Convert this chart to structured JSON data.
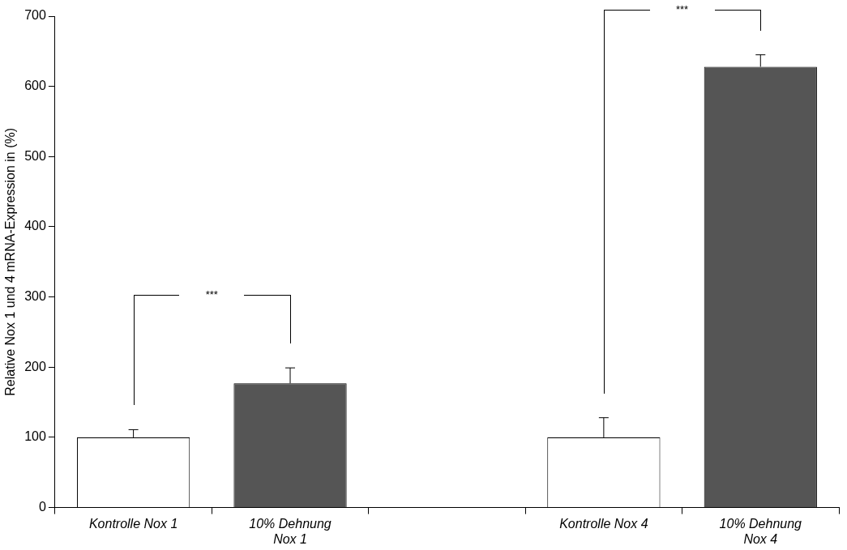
{
  "chart_data": {
    "type": "bar",
    "ylabel": "Relative Nox 1 und 4 mRNA-Expression in (%)",
    "categories": [
      "Kontrolle Nox 1",
      "10% Dehnung\nNox 1",
      null,
      "Kontrolle Nox 4",
      "10% Dehnung\nNox 4"
    ],
    "values": [
      100,
      177,
      null,
      100,
      628
    ],
    "colors": [
      "#ffffff",
      "#555555",
      null,
      "#ffffff",
      "#555555"
    ],
    "errors": [
      [
        100,
        111
      ],
      [
        177,
        199
      ],
      null,
      [
        100,
        128
      ],
      [
        628,
        645
      ]
    ],
    "ylim": [
      0,
      700
    ],
    "yticks": [
      0,
      100,
      200,
      300,
      400,
      500,
      600,
      700
    ],
    "annotations": [
      "***",
      "***"
    ]
  }
}
